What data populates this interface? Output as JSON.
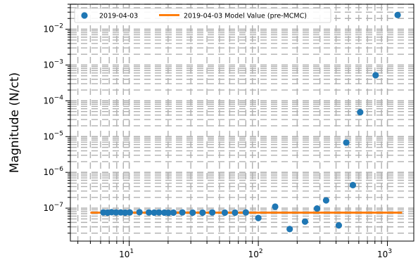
{
  "chart_data": {
    "type": "scatter",
    "title": "",
    "xlabel": "",
    "ylabel": "Magnitude (N/ct)",
    "xscale": "log",
    "yscale": "log",
    "xlim": [
      3.5,
      1600
    ],
    "ylim": [
      1.2e-08,
      0.05
    ],
    "grid": true,
    "legend_placement": "top-left",
    "x_tick_labels": [
      "10",
      "10",
      "10"
    ],
    "x_tick_exponents": [
      "1",
      "2",
      "3"
    ],
    "y_tick_labels": [
      "10",
      "10",
      "10",
      "10",
      "10",
      "10"
    ],
    "y_tick_exponents": [
      "−7",
      "−6",
      "−5",
      "−4",
      "−3",
      "−2"
    ],
    "series": [
      {
        "name": "2019-04-03",
        "kind": "points",
        "color": "#1f77b4",
        "x": [
          6.3,
          6.8,
          7.3,
          7.9,
          8.6,
          9.3,
          10.1,
          12.0,
          14.2,
          15.6,
          17.0,
          18.7,
          20.1,
          22.0,
          25.8,
          31.0,
          37.0,
          44.0,
          55.0,
          66.0,
          80.0,
          100,
          135,
          175,
          230,
          285,
          335,
          420,
          480,
          540,
          615,
          810,
          1200
        ],
        "y": [
          7.6e-08,
          7.5e-08,
          7.7e-08,
          7.6e-08,
          7.6e-08,
          7.5e-08,
          7.6e-08,
          7.7e-08,
          7.6e-08,
          7.5e-08,
          7.6e-08,
          7.5e-08,
          7.4e-08,
          7.5e-08,
          7.6e-08,
          7.5e-08,
          7.5e-08,
          7.6e-08,
          7.5e-08,
          7.5e-08,
          7.6e-08,
          5.3e-08,
          1.1e-07,
          2.6e-08,
          4.2e-08,
          9.8e-08,
          1.65e-07,
          3.3e-08,
          6.8e-06,
          4.4e-07,
          4.8e-05,
          0.00052,
          0.025
        ]
      },
      {
        "name": "2019-04-03 Model Value (pre-MCMC)",
        "kind": "line",
        "color": "#ff7f0e",
        "x": [
          5,
          1300
        ],
        "y": [
          7.5e-08,
          7.5e-08
        ]
      }
    ]
  }
}
